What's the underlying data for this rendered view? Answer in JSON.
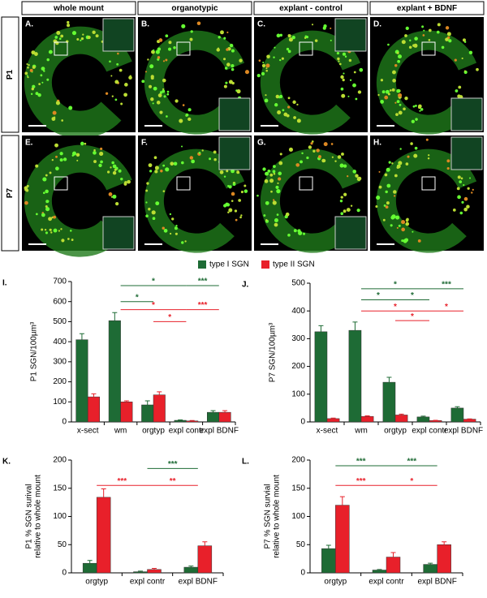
{
  "columns": [
    "whole mount",
    "organotypic",
    "explant - control",
    "explant + BDNF"
  ],
  "rows": [
    "P1",
    "P7"
  ],
  "panels": [
    "A.",
    "B.",
    "C.",
    "D.",
    "E.",
    "F.",
    "G.",
    "H."
  ],
  "legend": [
    {
      "name": "type I SGN",
      "color": "#1e6b35"
    },
    {
      "name": "type II SGN",
      "color": "#e8202a"
    }
  ],
  "chart_data": [
    {
      "type": "bar",
      "panel": "I.",
      "ylabel": [
        "P1 SGN/100µm³"
      ],
      "categories": [
        "x-sect",
        "wm",
        "orgtyp",
        "expl contr",
        "expl BDNF"
      ],
      "series": [
        {
          "values": [
            410,
            505,
            85,
            8,
            48
          ],
          "errors": [
            30,
            40,
            20,
            2,
            8
          ]
        },
        {
          "values": [
            125,
            100,
            135,
            5,
            48
          ],
          "errors": [
            15,
            5,
            15,
            2,
            8
          ]
        }
      ],
      "ylim": [
        0,
        700
      ],
      "yticks": [
        0,
        100,
        200,
        300,
        400,
        500,
        600,
        700
      ],
      "annotations": [
        {
          "label": "*",
          "from": 1,
          "to": 3,
          "y": 680,
          "series": 0
        },
        {
          "label": "*",
          "from": 1,
          "to": 2,
          "y": 600,
          "series": 0
        },
        {
          "label": "***",
          "from": 3,
          "to": 4,
          "y": 680,
          "series": 0
        },
        {
          "label": "*",
          "from": 1,
          "to": 3,
          "y": 560,
          "series": 1
        },
        {
          "label": "*",
          "from": 2,
          "to": 3,
          "y": 500,
          "series": 1
        },
        {
          "label": "***",
          "from": 3,
          "to": 4,
          "y": 560,
          "series": 1
        }
      ]
    },
    {
      "type": "bar",
      "panel": "J.",
      "ylabel": [
        "P7 SGN/100µm³"
      ],
      "categories": [
        "x-sect",
        "wm",
        "orgtyp",
        "expl contr",
        "expl BDNF"
      ],
      "series": [
        {
          "values": [
            325,
            330,
            143,
            18,
            50
          ],
          "errors": [
            22,
            30,
            18,
            3,
            5
          ]
        },
        {
          "values": [
            12,
            20,
            25,
            5,
            10
          ],
          "errors": [
            2,
            2,
            3,
            1,
            1
          ]
        }
      ],
      "ylim": [
        0,
        500
      ],
      "yticks": [
        0,
        100,
        200,
        300,
        400,
        500
      ],
      "annotations": [
        {
          "label": "*",
          "from": 1,
          "to": 3,
          "y": 480,
          "series": 0
        },
        {
          "label": "*",
          "from": 1,
          "to": 2,
          "y": 440,
          "series": 0
        },
        {
          "label": "*",
          "from": 2,
          "to": 3,
          "y": 440,
          "series": 0
        },
        {
          "label": "***",
          "from": 3,
          "to": 4,
          "y": 480,
          "series": 0
        },
        {
          "label": "*",
          "from": 1,
          "to": 3,
          "y": 400,
          "series": 1
        },
        {
          "label": "*",
          "from": 2,
          "to": 3,
          "y": 365,
          "series": 1
        },
        {
          "label": "*",
          "from": 3,
          "to": 4,
          "y": 400,
          "series": 1
        }
      ]
    },
    {
      "type": "bar",
      "panel": "K.",
      "ylabel": [
        "P1 % SGN surival",
        "relative to whole mount"
      ],
      "categories": [
        "orgtyp",
        "expl contr",
        "expl BDNF"
      ],
      "series": [
        {
          "values": [
            17,
            2,
            10
          ],
          "errors": [
            5,
            1,
            2
          ]
        },
        {
          "values": [
            134,
            6,
            48
          ],
          "errors": [
            15,
            2,
            7
          ]
        }
      ],
      "ylim": [
        0,
        200
      ],
      "yticks": [
        0,
        50,
        100,
        150,
        200
      ],
      "annotations": [
        {
          "label": "***",
          "from": 1,
          "to": 2,
          "y": 185,
          "series": 0
        },
        {
          "label": "***",
          "from": 0,
          "to": 1,
          "y": 155,
          "series": 1
        },
        {
          "label": "**",
          "from": 1,
          "to": 2,
          "y": 155,
          "series": 1
        }
      ]
    },
    {
      "type": "bar",
      "panel": "L.",
      "ylabel": [
        "P7 % SGN survial",
        "relative to whole mount"
      ],
      "categories": [
        "orgtyp",
        "expl contr",
        "expl BDNF"
      ],
      "series": [
        {
          "values": [
            43,
            5,
            15
          ],
          "errors": [
            6,
            1,
            2
          ]
        },
        {
          "values": [
            120,
            28,
            50
          ],
          "errors": [
            15,
            8,
            5
          ]
        }
      ],
      "ylim": [
        0,
        200
      ],
      "yticks": [
        0,
        50,
        100,
        150,
        200
      ],
      "annotations": [
        {
          "label": "***",
          "from": 0,
          "to": 1,
          "y": 190,
          "series": 0
        },
        {
          "label": "***",
          "from": 1,
          "to": 2,
          "y": 190,
          "series": 0
        },
        {
          "label": "***",
          "from": 0,
          "to": 1,
          "y": 155,
          "series": 1
        },
        {
          "label": "*",
          "from": 1,
          "to": 2,
          "y": 155,
          "series": 1
        }
      ]
    }
  ]
}
